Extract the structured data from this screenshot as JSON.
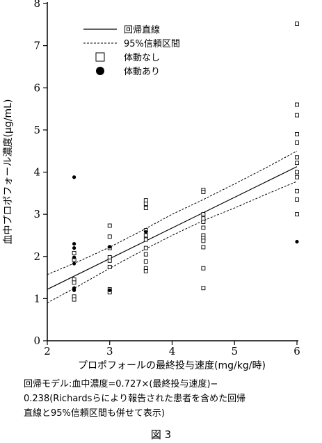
{
  "chart_data": {
    "type": "scatter",
    "title": "",
    "xlabel": "プロポフォールの最終投与速度(mg/kg/時)",
    "ylabel": "血中プロポフォール濃度(μg/mL)",
    "xlim": [
      2,
      6
    ],
    "ylim": [
      0,
      8
    ],
    "x_ticks": [
      "2",
      "3",
      "4",
      "5",
      "6"
    ],
    "y_ticks": [
      "0",
      "1",
      "2",
      "3",
      "4",
      "5",
      "6",
      "7",
      "8"
    ],
    "grid": false,
    "legend_position": "top-left",
    "legend": [
      "回帰直線",
      "95%信頼区間",
      "体動なし",
      "体動あり"
    ],
    "series": [
      {
        "name": "回帰直線",
        "kind": "line",
        "x": [
          2,
          6
        ],
        "y": [
          1.22,
          4.13
        ]
      },
      {
        "name": "95%信頼区間",
        "kind": "band",
        "x": [
          2,
          2.5,
          3,
          3.5,
          4,
          4.5,
          5,
          5.5,
          6
        ],
        "upper": [
          1.57,
          1.88,
          2.22,
          2.6,
          3.0,
          3.35,
          3.72,
          4.1,
          4.5
        ],
        "lower": [
          0.9,
          1.3,
          1.72,
          2.12,
          2.5,
          2.85,
          3.15,
          3.47,
          3.78
        ]
      },
      {
        "name": "体動なし",
        "kind": "points",
        "x": [
          2.43,
          2.43,
          2.43,
          2.43,
          2.43,
          2.43,
          3.0,
          3.0,
          3.0,
          3.0,
          3.0,
          3.0,
          3.0,
          3.0,
          3.58,
          3.58,
          3.58,
          3.58,
          3.58,
          3.58,
          3.58,
          3.58,
          3.58,
          3.58,
          3.58,
          4.5,
          4.5,
          4.5,
          4.5,
          4.5,
          4.5,
          4.5,
          4.5,
          4.5,
          4.5,
          4.5,
          4.5,
          6.0,
          6.0,
          6.0,
          6.0,
          6.0,
          6.0,
          6.0,
          6.0,
          6.0,
          6.0,
          6.0,
          6.0
        ],
        "y": [
          2.08,
          1.92,
          1.45,
          1.38,
          1.05,
          0.98,
          2.73,
          2.47,
          2.2,
          1.98,
          1.9,
          1.75,
          1.22,
          1.15,
          3.33,
          3.25,
          3.15,
          2.62,
          2.5,
          2.4,
          2.2,
          2.05,
          1.88,
          1.72,
          1.65,
          3.58,
          3.53,
          3.0,
          2.9,
          2.82,
          2.68,
          2.5,
          2.43,
          2.37,
          2.22,
          1.72,
          1.25,
          7.52,
          5.6,
          5.35,
          4.9,
          4.7,
          4.35,
          4.22,
          4.0,
          3.88,
          3.55,
          3.35,
          3.0
        ]
      },
      {
        "name": "体動あり",
        "kind": "points",
        "x": [
          2.43,
          2.43,
          2.43,
          2.43,
          2.43,
          2.43,
          2.43,
          3.0,
          3.0,
          3.58,
          6.0
        ],
        "y": [
          3.88,
          2.3,
          2.2,
          1.98,
          1.83,
          1.25,
          1.2,
          2.23,
          1.2,
          2.58,
          2.35
        ]
      }
    ]
  },
  "caption": {
    "line1": "回帰モデル:血中濃度=0.727×(最終投与速度)−",
    "line2": "0.238(Richardsらにより報告された患者を含めた回帰",
    "line3": "直線と95%信頼区間も併せて表示)"
  },
  "figure_label": "図 3"
}
